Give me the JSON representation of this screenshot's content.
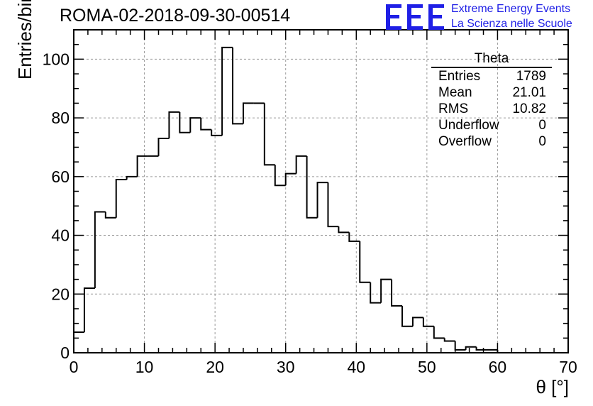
{
  "title": "ROMA-02-2018-09-30-00514",
  "logo": {
    "mark": "EEE",
    "line1": "Extreme Energy Events",
    "line2": "La Scienza nelle Scuole",
    "color": "#1f1fe6"
  },
  "stats_box": {
    "title": "Theta",
    "rows": [
      {
        "label": "Entries",
        "value": "1789"
      },
      {
        "label": "Mean",
        "value": "21.01"
      },
      {
        "label": "RMS",
        "value": "10.82"
      },
      {
        "label": "Underflow",
        "value": "0"
      },
      {
        "label": "Overflow",
        "value": "0"
      }
    ]
  },
  "chart_data": {
    "type": "bar",
    "style": "step-histogram",
    "title": "ROMA-02-2018-09-30-00514",
    "xlabel": "θ [°]",
    "ylabel": "Entries/bin",
    "xlim": [
      0,
      70
    ],
    "ylim": [
      0,
      110
    ],
    "bin_width": 1.5,
    "bin_start": 0,
    "values": [
      7,
      22,
      48,
      46,
      59,
      60,
      67,
      67,
      73,
      82,
      75,
      80,
      76,
      74,
      104,
      78,
      85,
      85,
      64,
      57,
      61,
      67,
      46,
      58,
      43,
      41,
      38,
      24,
      17,
      25,
      16,
      9,
      12,
      9,
      5,
      4,
      1,
      2,
      1,
      1,
      0,
      0,
      0,
      0,
      0,
      0,
      0
    ],
    "x_ticks": [
      0,
      10,
      20,
      30,
      40,
      50,
      60,
      70
    ],
    "y_ticks": [
      0,
      20,
      40,
      60,
      80,
      100
    ],
    "grid": true,
    "line_color": "#000000"
  }
}
